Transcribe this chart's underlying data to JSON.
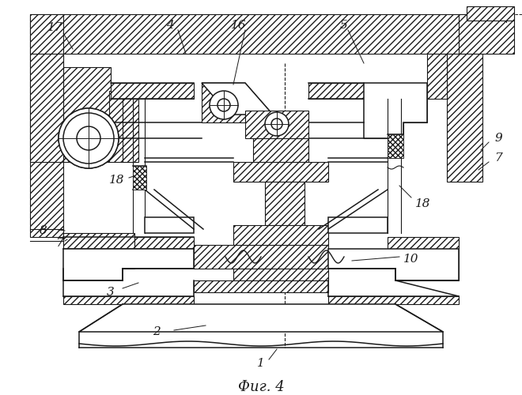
{
  "bg_color": "#ffffff",
  "line_color": "#1a1a1a",
  "fig_width": 6.6,
  "fig_height": 5.0,
  "dpi": 100,
  "caption": "Фиг. 4",
  "label_fs": 11
}
